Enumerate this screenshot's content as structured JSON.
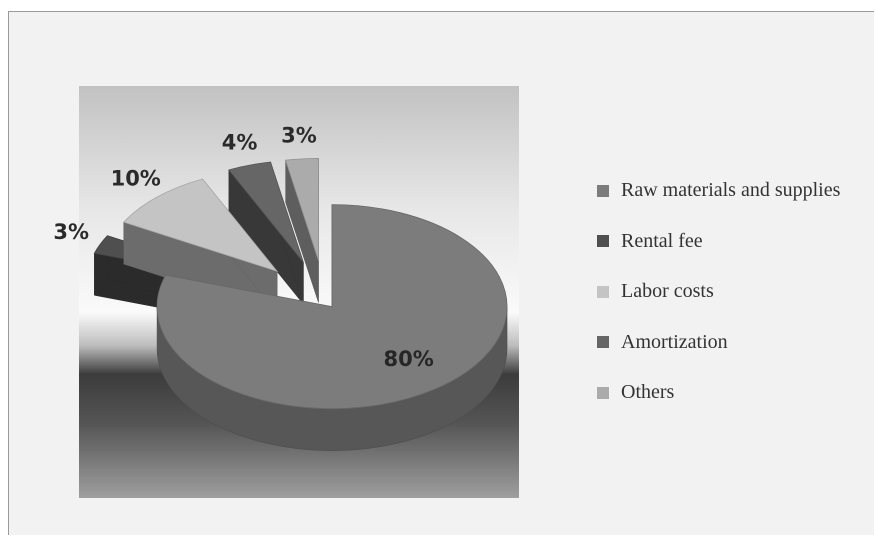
{
  "chart_data": {
    "type": "pie",
    "title": "",
    "categories": [
      "Raw materials and supplies",
      "Rental fee",
      "Labor costs",
      "Amortization",
      "Others"
    ],
    "values": [
      80,
      3,
      10,
      4,
      3
    ],
    "data_labels": [
      "80%",
      "3%",
      "10%",
      "4%",
      "3%"
    ],
    "colors": [
      "#7c7c7c",
      "#4f4f4f",
      "#c4c4c4",
      "#666666",
      "#ababab"
    ],
    "exploded": true,
    "three_d": true,
    "legend_position": "right"
  }
}
